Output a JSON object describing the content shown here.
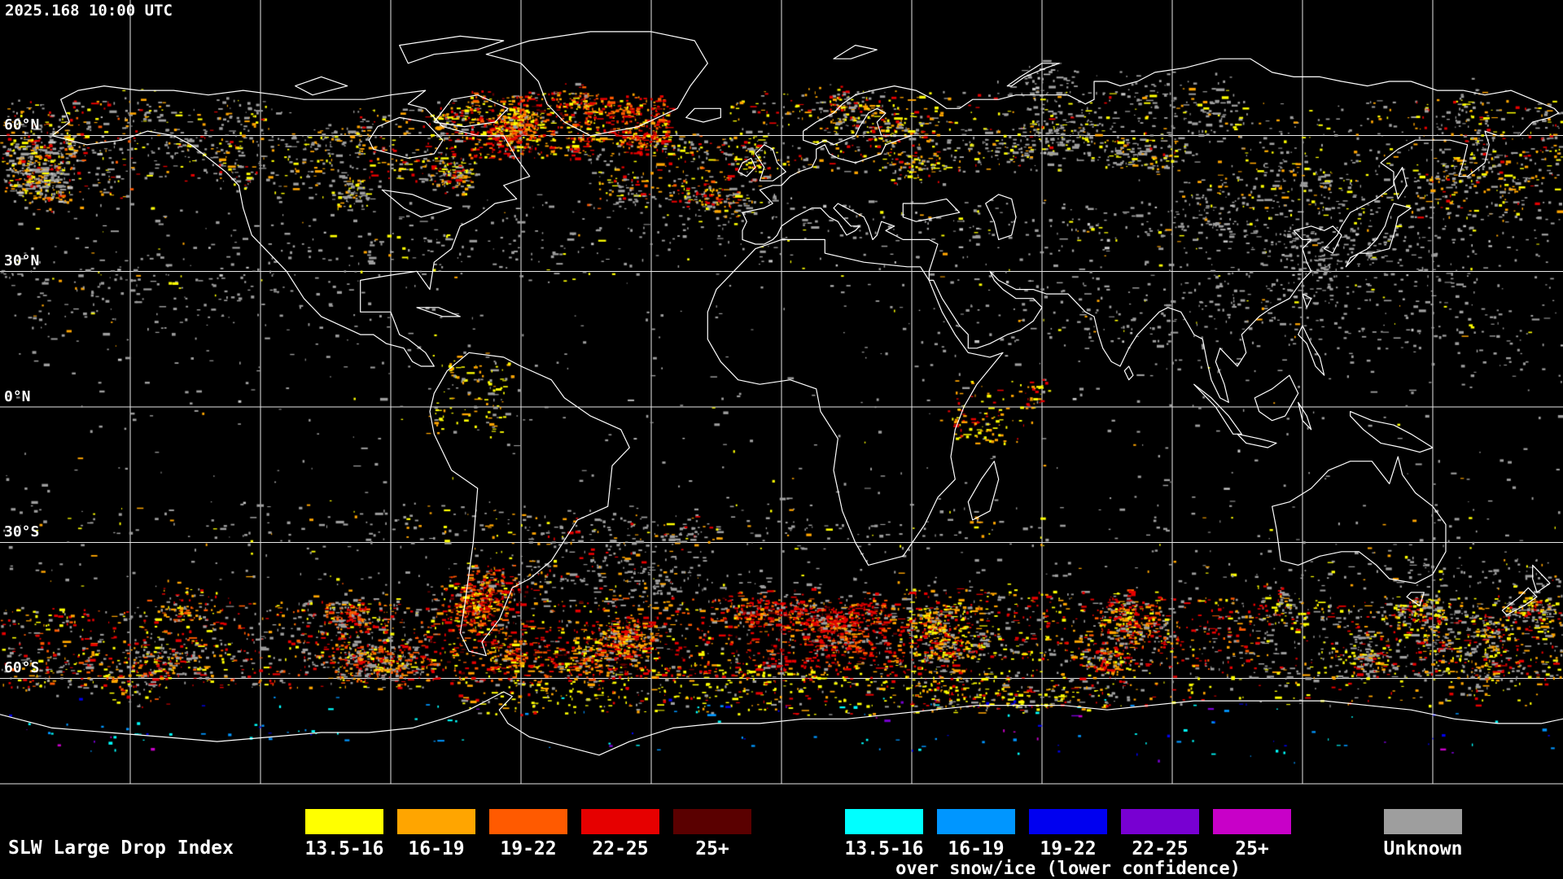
{
  "header": {
    "timestamp": "2025.168 10:00 UTC"
  },
  "map": {
    "latitude_labels": [
      "60°N",
      "30°N",
      "0°N",
      "30°S",
      "60°S"
    ],
    "grid": {
      "lon_interval_deg": 30,
      "lat_interval_deg": 30
    },
    "colors": {
      "background": "#000000",
      "coastline": "#ffffff",
      "gridline": "#e6e6e6"
    }
  },
  "legend": {
    "title": "SLW Large Drop Index",
    "main_scale": [
      {
        "range": "13.5-16",
        "color": "#ffff00"
      },
      {
        "range": "16-19",
        "color": "#ffa500"
      },
      {
        "range": "19-22",
        "color": "#ff5a00"
      },
      {
        "range": "22-25",
        "color": "#e60000"
      },
      {
        "range": "25+",
        "color": "#5a0000"
      }
    ],
    "snow_ice_scale": [
      {
        "range": "13.5-16",
        "color": "#00ffff"
      },
      {
        "range": "16-19",
        "color": "#0096ff"
      },
      {
        "range": "19-22",
        "color": "#0000f0"
      },
      {
        "range": "22-25",
        "color": "#7800d2"
      },
      {
        "range": "25+",
        "color": "#c800c8"
      }
    ],
    "snow_ice_caption": "over snow/ice (lower confidence)",
    "unknown": {
      "label": "Unknown",
      "color": "#9e9e9e"
    }
  }
}
